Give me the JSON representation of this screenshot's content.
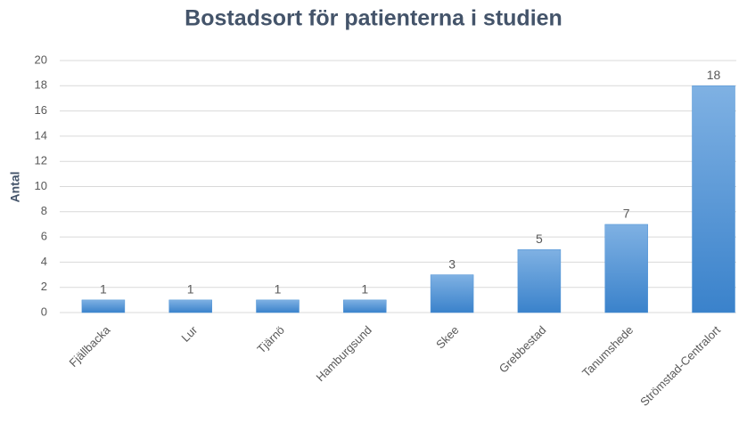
{
  "chart_data": {
    "type": "bar",
    "title": "Bostadsort för patienterna i studien",
    "y_label": "Antal",
    "categories": [
      "Fjällbacka",
      "Lur",
      "Tjärnö",
      "Hamburgsund",
      "Skee",
      "Grebbestad",
      "Tanumshede",
      "Strömstad-Centralort"
    ],
    "values": [
      1,
      1,
      1,
      1,
      3,
      5,
      7,
      18
    ],
    "color": "#4f93d6",
    "ylim": [
      0,
      20
    ],
    "yticks": [
      0,
      2,
      4,
      6,
      8,
      10,
      12,
      14,
      16,
      18,
      20
    ],
    "grid": true,
    "data_labels": true
  }
}
